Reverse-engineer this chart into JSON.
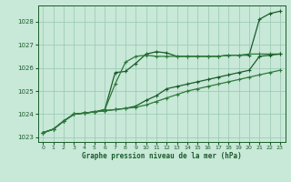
{
  "background_color": "#c8e8d8",
  "grid_color": "#98c8b0",
  "line_color1": "#1a5c2a",
  "line_color2": "#2d7a3a",
  "xlabel": "Graphe pression niveau de la mer (hPa)",
  "ylim": [
    1022.8,
    1028.7
  ],
  "xlim": [
    -0.5,
    23.5
  ],
  "yticks": [
    1023,
    1024,
    1025,
    1026,
    1027,
    1028
  ],
  "xticks": [
    0,
    1,
    2,
    3,
    4,
    5,
    6,
    7,
    8,
    9,
    10,
    11,
    12,
    13,
    14,
    15,
    16,
    17,
    18,
    19,
    20,
    21,
    22,
    23
  ],
  "series1_x": [
    0,
    1,
    2,
    3,
    4,
    5,
    6,
    7,
    8,
    9,
    10,
    11,
    12,
    13,
    14,
    15,
    16,
    17,
    18,
    19,
    20,
    21,
    22,
    23
  ],
  "series1_y": [
    1023.2,
    1023.35,
    1023.7,
    1024.0,
    1024.05,
    1024.1,
    1024.2,
    1025.8,
    1025.85,
    1026.2,
    1026.6,
    1026.7,
    1026.65,
    1026.5,
    1026.5,
    1026.5,
    1026.5,
    1026.5,
    1026.55,
    1026.55,
    1026.55,
    1028.1,
    1028.35,
    1028.45
  ],
  "series2_x": [
    0,
    1,
    2,
    3,
    4,
    5,
    6,
    7,
    8,
    9,
    10,
    11,
    12,
    13,
    14,
    15,
    16,
    17,
    18,
    19,
    20,
    21,
    22,
    23
  ],
  "series2_y": [
    1023.2,
    1023.35,
    1023.7,
    1024.0,
    1024.05,
    1024.1,
    1024.2,
    1025.3,
    1026.25,
    1026.5,
    1026.55,
    1026.5,
    1026.5,
    1026.5,
    1026.5,
    1026.5,
    1026.5,
    1026.5,
    1026.55,
    1026.55,
    1026.6,
    1026.6,
    1026.6,
    1026.6
  ],
  "series3_x": [
    0,
    1,
    2,
    3,
    4,
    5,
    6,
    7,
    8,
    9,
    10,
    11,
    12,
    13,
    14,
    15,
    16,
    17,
    18,
    19,
    20,
    21,
    22,
    23
  ],
  "series3_y": [
    1023.2,
    1023.35,
    1023.7,
    1024.0,
    1024.05,
    1024.1,
    1024.15,
    1024.2,
    1024.25,
    1024.35,
    1024.6,
    1024.8,
    1025.1,
    1025.2,
    1025.3,
    1025.4,
    1025.5,
    1025.6,
    1025.7,
    1025.8,
    1025.9,
    1026.5,
    1026.55,
    1026.6
  ],
  "series4_x": [
    0,
    1,
    2,
    3,
    4,
    5,
    6,
    7,
    8,
    9,
    10,
    11,
    12,
    13,
    14,
    15,
    16,
    17,
    18,
    19,
    20,
    21,
    22,
    23
  ],
  "series4_y": [
    1023.2,
    1023.35,
    1023.7,
    1024.0,
    1024.05,
    1024.1,
    1024.15,
    1024.2,
    1024.25,
    1024.3,
    1024.4,
    1024.55,
    1024.7,
    1024.85,
    1025.0,
    1025.1,
    1025.2,
    1025.3,
    1025.4,
    1025.5,
    1025.6,
    1025.7,
    1025.8,
    1025.9
  ]
}
